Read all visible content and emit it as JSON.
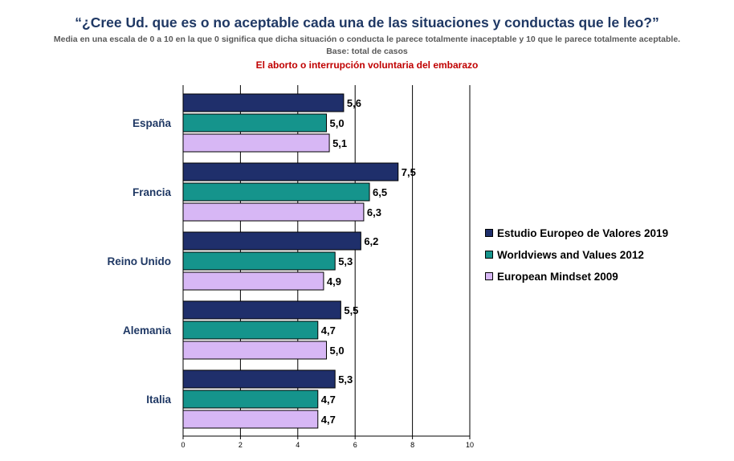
{
  "title": "“¿Cree Ud. que es o no aceptable cada una de las situaciones y conductas que le leo?”",
  "subtitle": "Media en una escala de 0 a 10 en la que 0 significa que dicha situación o conducta le parece totalmente inaceptable y 10 que le parece totalmente aceptable.",
  "base": "Base: total de casos",
  "topic": "El aborto o interrupción voluntaria del embarazo",
  "colors": {
    "series1": "#1f2f6b",
    "series2": "#15948c",
    "series3": "#d7b7f5",
    "title": "#1f3864",
    "topic": "#c00000"
  },
  "chart_data": {
    "type": "bar",
    "orientation": "horizontal",
    "categories": [
      "España",
      "Francia",
      "Reino Unido",
      "Alemania",
      "Italia"
    ],
    "series": [
      {
        "name": "Estudio Europeo de Valores 2019",
        "values": [
          5.6,
          7.5,
          6.2,
          5.5,
          5.3
        ],
        "labels": [
          "5,6",
          "7,5",
          "6,2",
          "5,5",
          "5,3"
        ]
      },
      {
        "name": "Worldviews and Values 2012",
        "values": [
          5.0,
          6.5,
          5.3,
          4.7,
          4.7
        ],
        "labels": [
          "5,0",
          "6,5",
          "5,3",
          "4,7",
          "4,7"
        ]
      },
      {
        "name": "European Mindset 2009",
        "values": [
          5.1,
          6.3,
          4.9,
          5.0,
          4.7
        ],
        "labels": [
          "5,1",
          "6,3",
          "4,9",
          "5,0",
          "4,7"
        ]
      }
    ],
    "xlim": [
      0,
      10
    ],
    "xticks": [
      "0",
      "2",
      "4",
      "6",
      "8",
      "10"
    ],
    "grid": "vertical",
    "legend_position": "right"
  }
}
